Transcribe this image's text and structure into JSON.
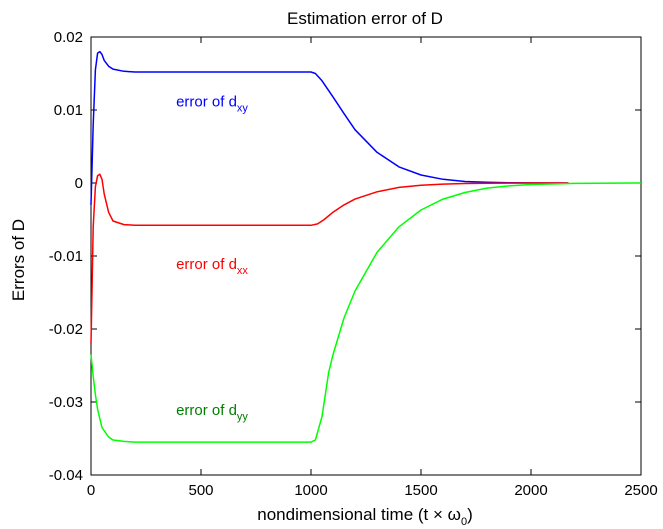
{
  "chart_data": {
    "type": "line",
    "title": "Estimation error of D",
    "xlabel": {
      "main": "nondimensional time (t × ω",
      "sub": "0",
      "tail": ")"
    },
    "ylabel": "Errors of D",
    "xlim": [
      0,
      2500
    ],
    "ylim": [
      -0.04,
      0.02
    ],
    "xticks": [
      0,
      500,
      1000,
      1500,
      2000,
      2500
    ],
    "xtick_labels": [
      "0",
      "500",
      "1000",
      "1500",
      "2000",
      "2500"
    ],
    "yticks": [
      -0.04,
      -0.03,
      -0.02,
      -0.01,
      0,
      0.01,
      0.02
    ],
    "ytick_labels": [
      "-0.04",
      "-0.03",
      "-0.02",
      "-0.01",
      "0",
      "0.01",
      "0.02"
    ],
    "grid": false,
    "series": [
      {
        "color": "#0000ff",
        "x": [
          0,
          10,
          20,
          30,
          40,
          50,
          60,
          80,
          100,
          150,
          200,
          300,
          400,
          600,
          800,
          1000,
          1020,
          1050,
          1100,
          1150,
          1200,
          1300,
          1400,
          1500,
          1600,
          1700,
          1800,
          1900,
          2000,
          2100,
          2170
        ],
        "y": [
          -0.003,
          0.008,
          0.0155,
          0.0178,
          0.018,
          0.0176,
          0.0168,
          0.016,
          0.0156,
          0.0153,
          0.0152,
          0.0152,
          0.0152,
          0.0152,
          0.0152,
          0.0152,
          0.015,
          0.014,
          0.0118,
          0.0095,
          0.0073,
          0.0042,
          0.0022,
          0.0011,
          0.0005,
          0.0002,
          0.0001,
          3e-05,
          1e-05,
          0.0,
          0.0
        ]
      },
      {
        "color": "#ff0000",
        "x": [
          0,
          10,
          20,
          30,
          40,
          50,
          60,
          80,
          100,
          150,
          200,
          300,
          500,
          700,
          900,
          1000,
          1030,
          1060,
          1100,
          1150,
          1200,
          1300,
          1400,
          1500,
          1600,
          1700,
          1800,
          1900,
          2000,
          2100,
          2170
        ],
        "y": [
          -0.022,
          -0.006,
          -0.0005,
          0.001,
          0.0012,
          0.0005,
          -0.0015,
          -0.004,
          -0.0052,
          -0.0057,
          -0.0058,
          -0.0058,
          -0.0058,
          -0.0058,
          -0.0058,
          -0.0058,
          -0.0056,
          -0.005,
          -0.004,
          -0.003,
          -0.0022,
          -0.0012,
          -0.0006,
          -0.0003,
          -0.00015,
          -7e-05,
          -3e-05,
          -1e-05,
          0.0,
          0.0,
          0.0
        ]
      },
      {
        "color": "#00ff00",
        "x": [
          0,
          10,
          20,
          30,
          50,
          80,
          100,
          150,
          200,
          300,
          500,
          700,
          900,
          1000,
          1020,
          1050,
          1080,
          1100,
          1150,
          1200,
          1300,
          1400,
          1500,
          1600,
          1700,
          1800,
          1900,
          2000,
          2200,
          2500
        ],
        "y": [
          -0.0235,
          -0.0265,
          -0.029,
          -0.031,
          -0.0335,
          -0.0348,
          -0.0352,
          -0.0354,
          -0.0355,
          -0.0355,
          -0.0355,
          -0.0355,
          -0.0355,
          -0.0355,
          -0.0352,
          -0.032,
          -0.026,
          -0.0235,
          -0.0185,
          -0.0148,
          -0.0095,
          -0.006,
          -0.0037,
          -0.0022,
          -0.0013,
          -0.0007,
          -0.0004,
          -0.0002,
          -5e-05,
          0.0
        ]
      }
    ],
    "annotations": [
      {
        "text": "error of d",
        "sub": "xy",
        "color": "#0000ff",
        "x": 550,
        "y": 0.0105
      },
      {
        "text": "error of d",
        "sub": "xx",
        "color": "#ff0000",
        "x": 550,
        "y": -0.0118
      },
      {
        "text": "error of d",
        "sub": "yy",
        "color": "#008000",
        "x": 550,
        "y": -0.0318
      }
    ]
  }
}
